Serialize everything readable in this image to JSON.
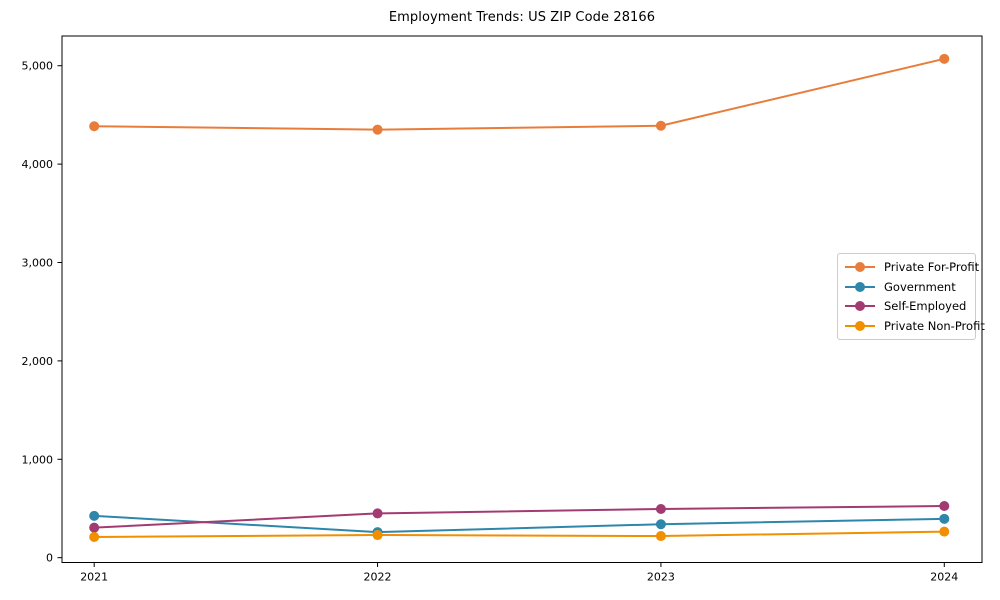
{
  "figure": {
    "background": "#ffffff"
  },
  "chart_data": {
    "type": "line",
    "title": "Employment Trends: US ZIP Code 28166",
    "x": [
      "2021",
      "2022",
      "2023",
      "2024"
    ],
    "series": [
      {
        "name": "Private For-Profit",
        "color": "#e87d3b",
        "values": [
          4385,
          4350,
          4390,
          5070
        ]
      },
      {
        "name": "Government",
        "color": "#2e86ab",
        "values": [
          425,
          260,
          340,
          395
        ]
      },
      {
        "name": "Self-Employed",
        "color": "#a23b72",
        "values": [
          305,
          450,
          495,
          525
        ]
      },
      {
        "name": "Private Non-Profit",
        "color": "#f18f01",
        "values": [
          210,
          230,
          220,
          265
        ]
      }
    ],
    "xlabel": "",
    "ylabel": "",
    "ylim": [
      -49,
      5302
    ],
    "yticks": [
      0,
      1000,
      2000,
      3000,
      4000,
      5000
    ],
    "ytick_labels": [
      "0",
      "1,000",
      "2,000",
      "3,000",
      "4,000",
      "5,000"
    ],
    "grid": false,
    "legend_position": "center right",
    "axis_color": "#000000",
    "text_color": "#000000",
    "marker": "circle",
    "marker_radius": 5,
    "line_width": 2
  }
}
